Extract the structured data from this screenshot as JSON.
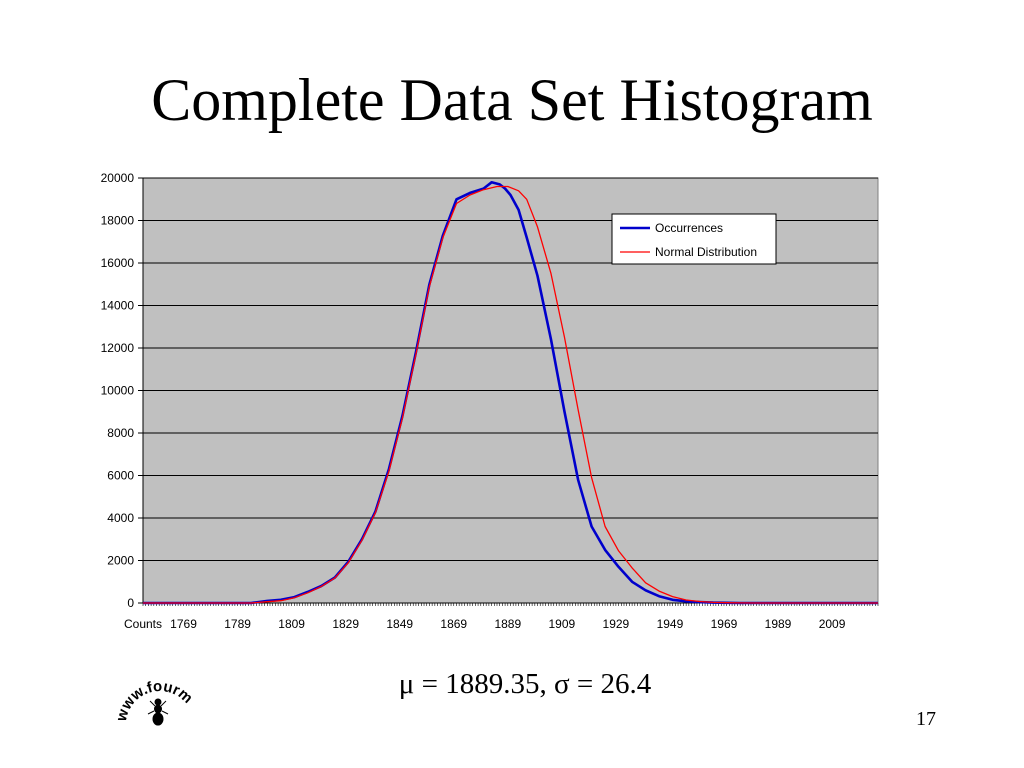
{
  "slide": {
    "title": "Complete Data Set Histogram",
    "stats_text": "μ = 1889.35, σ = 26.4",
    "page_number": "17",
    "logo_text": "www.fourmilab.ch"
  },
  "colors": {
    "plot_background": "#c0c0c0",
    "occurrences": "#0000cc",
    "normal": "#ff0000",
    "gridline": "#000000"
  },
  "chart_data": {
    "type": "line",
    "title": "",
    "xlabel": "",
    "ylabel": "",
    "x_first_label": "Counts",
    "x_tick_labels": [
      "1769",
      "1789",
      "1809",
      "1829",
      "1849",
      "1869",
      "1889",
      "1909",
      "1929",
      "1949",
      "1969",
      "1989",
      "2009"
    ],
    "x_tick_values": [
      1769,
      1789,
      1809,
      1829,
      1849,
      1869,
      1889,
      1909,
      1929,
      1949,
      1969,
      1989,
      2009
    ],
    "xlim": [
      1754,
      2026
    ],
    "ylim": [
      0,
      20000
    ],
    "y_ticks": [
      0,
      2000,
      4000,
      6000,
      8000,
      10000,
      12000,
      14000,
      16000,
      18000,
      20000
    ],
    "grid": true,
    "legend_position": "top-right",
    "series": [
      {
        "name": "Occurrences",
        "x": [
          1754,
          1794,
          1800,
          1805,
          1810,
          1815,
          1820,
          1825,
          1830,
          1835,
          1840,
          1845,
          1850,
          1855,
          1860,
          1865,
          1870,
          1875,
          1880,
          1883,
          1886,
          1888,
          1890,
          1893,
          1896,
          1900,
          1905,
          1910,
          1915,
          1920,
          1925,
          1930,
          1935,
          1940,
          1945,
          1950,
          1955,
          1960,
          1965,
          1970,
          1975,
          1980,
          1985,
          2026
        ],
        "y": [
          0,
          0,
          100,
          150,
          280,
          520,
          800,
          1200,
          1950,
          3000,
          4300,
          6300,
          8800,
          11800,
          15000,
          17300,
          19000,
          19300,
          19500,
          19800,
          19700,
          19500,
          19200,
          18500,
          17200,
          15400,
          12400,
          9000,
          5800,
          3600,
          2500,
          1700,
          1000,
          600,
          320,
          150,
          80,
          40,
          20,
          10,
          0,
          0,
          0,
          0
        ]
      },
      {
        "name": "Normal Distribution",
        "x": [
          1754,
          1794,
          1800,
          1805,
          1810,
          1815,
          1820,
          1825,
          1830,
          1835,
          1840,
          1845,
          1850,
          1855,
          1860,
          1865,
          1870,
          1875,
          1880,
          1885,
          1889,
          1893,
          1896,
          1900,
          1905,
          1910,
          1915,
          1920,
          1925,
          1930,
          1935,
          1940,
          1945,
          1950,
          1955,
          1960,
          1965,
          1970,
          1975,
          1980,
          1985,
          2026
        ],
        "y": [
          0,
          0,
          60,
          110,
          250,
          480,
          780,
          1180,
          1900,
          2950,
          4250,
          6200,
          8700,
          11700,
          14900,
          17200,
          18800,
          19200,
          19450,
          19600,
          19600,
          19400,
          19000,
          17700,
          15500,
          12500,
          9100,
          5900,
          3600,
          2450,
          1650,
          950,
          560,
          300,
          140,
          70,
          30,
          15,
          5,
          0,
          0,
          0
        ]
      }
    ]
  }
}
